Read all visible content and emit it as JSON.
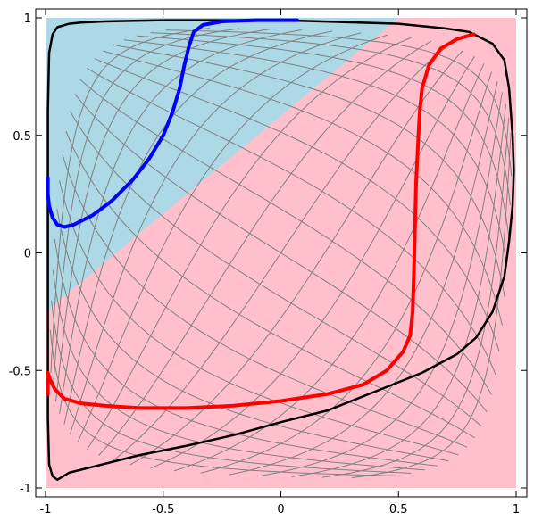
{
  "chart_data": {
    "type": "line",
    "title": "",
    "xlabel": "",
    "ylabel": "",
    "xlim": [
      -1,
      1
    ],
    "ylim": [
      -1,
      1
    ],
    "grid": false,
    "legend": "none",
    "x_ticks": [
      {
        "value": -1,
        "label": "-1"
      },
      {
        "value": -0.5,
        "label": "-0.5"
      },
      {
        "value": 0,
        "label": "0"
      },
      {
        "value": 0.5,
        "label": "0.5"
      },
      {
        "value": 1,
        "label": "1"
      }
    ],
    "y_ticks": [
      {
        "value": 1,
        "label": "1"
      },
      {
        "value": 0.5,
        "label": "0.5"
      },
      {
        "value": 0,
        "label": "0"
      },
      {
        "value": -0.5,
        "label": "-0.5"
      },
      {
        "value": -1,
        "label": "-1"
      }
    ],
    "regions": [
      {
        "color": "#ffc0cb",
        "points": [
          [
            -1,
            -1
          ],
          [
            1,
            -1
          ],
          [
            1,
            1
          ],
          [
            -1,
            1
          ]
        ]
      },
      {
        "color": "#add8e6",
        "points": [
          [
            -1,
            1
          ],
          [
            0.5,
            1
          ],
          [
            -1,
            -0.25
          ]
        ]
      }
    ],
    "mesh_color": "#808080",
    "series": [
      {
        "color": "#000000",
        "points": [
          [
            -0.75,
            0.985
          ],
          [
            -0.5,
            0.99
          ],
          [
            0,
            0.99
          ],
          [
            0.5,
            0.975
          ],
          [
            0.7,
            0.955
          ],
          [
            0.8,
            0.94
          ],
          [
            0.9,
            0.89
          ],
          [
            0.95,
            0.82
          ],
          [
            0.97,
            0.7
          ],
          [
            0.985,
            0.5
          ],
          [
            0.99,
            0.35
          ],
          [
            0.985,
            0.2
          ],
          [
            0.97,
            0.05
          ],
          [
            0.95,
            -0.1
          ],
          [
            0.9,
            -0.25
          ],
          [
            0.83,
            -0.36
          ],
          [
            0.75,
            -0.43
          ],
          [
            0.6,
            -0.51
          ],
          [
            0.4,
            -0.59
          ],
          [
            0.2,
            -0.67
          ],
          [
            0,
            -0.72
          ],
          [
            -0.2,
            -0.775
          ],
          [
            -0.4,
            -0.82
          ],
          [
            -0.6,
            -0.86
          ],
          [
            -0.8,
            -0.91
          ],
          [
            -0.9,
            -0.935
          ],
          [
            -0.95,
            -0.965
          ],
          [
            -0.97,
            -0.95
          ],
          [
            -0.985,
            -0.9
          ],
          [
            -0.99,
            -0.7
          ],
          [
            -0.99,
            -0.3
          ],
          [
            -0.99,
            0.2
          ],
          [
            -0.99,
            0.6
          ],
          [
            -0.985,
            0.85
          ],
          [
            -0.97,
            0.93
          ],
          [
            -0.95,
            0.96
          ],
          [
            -0.9,
            0.975
          ],
          [
            -0.85,
            0.98
          ],
          [
            -0.75,
            0.985
          ]
        ]
      },
      {
        "color": "#0000ff",
        "points": [
          [
            0.07,
            0.99
          ],
          [
            -0.1,
            0.99
          ],
          [
            -0.25,
            0.985
          ],
          [
            -0.33,
            0.97
          ],
          [
            -0.37,
            0.94
          ],
          [
            -0.39,
            0.88
          ],
          [
            -0.41,
            0.8
          ],
          [
            -0.43,
            0.7
          ],
          [
            -0.46,
            0.6
          ],
          [
            -0.5,
            0.5
          ],
          [
            -0.56,
            0.4
          ],
          [
            -0.63,
            0.31
          ],
          [
            -0.72,
            0.22
          ],
          [
            -0.8,
            0.16
          ],
          [
            -0.88,
            0.12
          ],
          [
            -0.92,
            0.11
          ],
          [
            -0.95,
            0.12
          ],
          [
            -0.97,
            0.15
          ],
          [
            -0.985,
            0.2
          ],
          [
            -0.99,
            0.25
          ],
          [
            -0.99,
            0.32
          ]
        ]
      },
      {
        "color": "#ff0000",
        "points": [
          [
            0.82,
            0.93
          ],
          [
            0.75,
            0.91
          ],
          [
            0.68,
            0.87
          ],
          [
            0.63,
            0.8
          ],
          [
            0.6,
            0.7
          ],
          [
            0.59,
            0.6
          ],
          [
            0.585,
            0.5
          ],
          [
            0.58,
            0.4
          ],
          [
            0.575,
            0.3
          ],
          [
            0.57,
            0.1
          ],
          [
            0.565,
            -0.1
          ],
          [
            0.56,
            -0.25
          ],
          [
            0.55,
            -0.35
          ],
          [
            0.52,
            -0.42
          ],
          [
            0.45,
            -0.5
          ],
          [
            0.35,
            -0.56
          ],
          [
            0.2,
            -0.6
          ],
          [
            0,
            -0.63
          ],
          [
            -0.2,
            -0.65
          ],
          [
            -0.4,
            -0.66
          ],
          [
            -0.6,
            -0.66
          ],
          [
            -0.75,
            -0.65
          ],
          [
            -0.85,
            -0.64
          ],
          [
            -0.92,
            -0.62
          ],
          [
            -0.96,
            -0.58
          ],
          [
            -0.98,
            -0.54
          ],
          [
            -0.99,
            -0.51
          ],
          [
            -0.99,
            -0.6
          ]
        ]
      }
    ]
  }
}
